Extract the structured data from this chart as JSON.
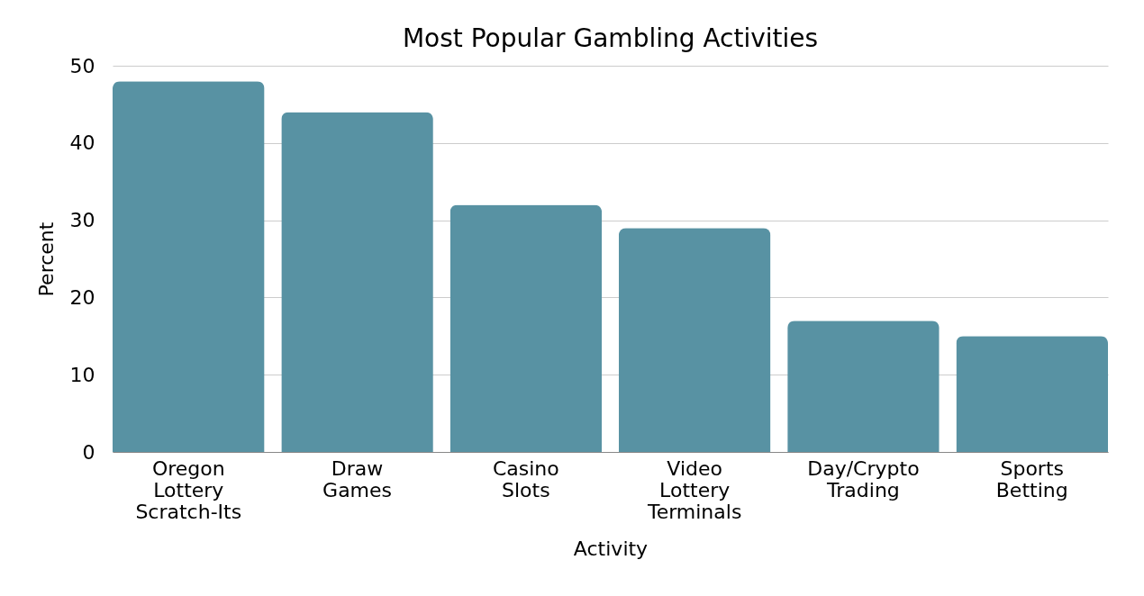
{
  "chart_data": {
    "type": "bar",
    "title": "Most Popular Gambling Activities",
    "xlabel": "Activity",
    "ylabel": "Percent",
    "categories": [
      "Oregon Lottery Scratch-Its",
      "Draw Games",
      "Casino Slots",
      "Video Lottery Terminals",
      "Day/Crypto Trading",
      "Sports Betting"
    ],
    "values": [
      48,
      44,
      32,
      29,
      17,
      15
    ],
    "color": "#5892a3",
    "ylim": [
      0,
      50
    ],
    "yticks": [
      0,
      10,
      20,
      30,
      40,
      50
    ],
    "grid": "y"
  }
}
